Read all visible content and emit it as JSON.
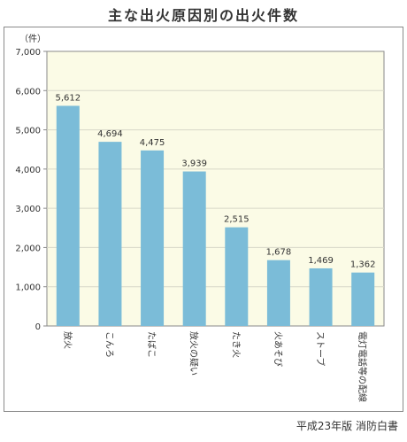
{
  "title": "主な出火原因別の出火件数",
  "source": "平成23年版 消防白書",
  "colors": {
    "bar": "#7bbcd8",
    "plot_bg": "#fbfbe6",
    "grid": "#d8d8c8",
    "frame": "#8a8a8a"
  },
  "chart_data": {
    "type": "bar",
    "title": "主な出火原因別の出火件数",
    "unit_label": "（件）",
    "categories": [
      "放火",
      "こんろ",
      "たばこ",
      "放火の疑い",
      "たき火",
      "火あそび",
      "ストーブ",
      "電灯電話等の配線"
    ],
    "values": [
      5612,
      4694,
      4475,
      3939,
      2515,
      1678,
      1469,
      1362
    ],
    "value_labels": [
      "5,612",
      "4,694",
      "4,475",
      "3,939",
      "2,515",
      "1,678",
      "1,469",
      "1,362"
    ],
    "yticks": [
      "0",
      "1,000",
      "2,000",
      "3,000",
      "4,000",
      "5,000",
      "6,000",
      "7,000"
    ],
    "ylim": [
      0,
      7000
    ],
    "grid": true,
    "legend": "none"
  }
}
